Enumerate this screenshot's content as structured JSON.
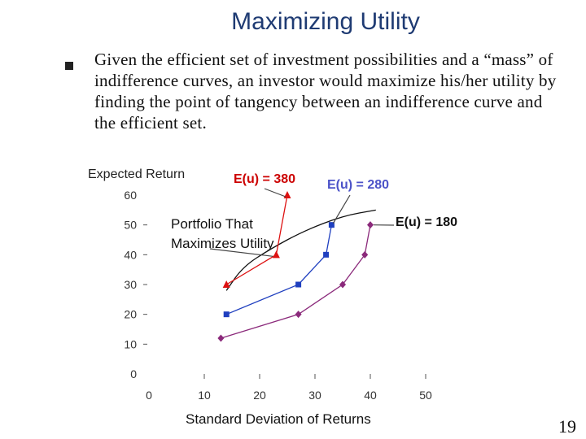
{
  "slide": {
    "title": "Maximizing Utility",
    "body": "Given the efficient set of investment possibilities and a “mass” of indifference curves, an investor would maximize his/her utility by finding the point of tangency between an indifference curve and the efficient set.",
    "page_number": "19"
  },
  "chart_data": {
    "type": "line",
    "xlabel": "Standard Deviation of Returns",
    "ylabel": "Expected Return",
    "xlim": [
      0,
      50
    ],
    "ylim": [
      0,
      60
    ],
    "x_ticks": [
      "0",
      "10",
      "20",
      "30",
      "40",
      "50"
    ],
    "y_ticks": [
      "0",
      "10",
      "20",
      "30",
      "40",
      "50",
      "60"
    ],
    "grid": false,
    "colors": {
      "red": "#dd1111",
      "blue": "#1f3fbf",
      "purple": "#8b2a7b",
      "efficient_set": "#111111",
      "label_blue": "#4b52c8"
    },
    "series": [
      {
        "name": "E(u) = 380",
        "label_color": "#cc0000",
        "marker": "triangle",
        "points": [
          [
            14,
            30
          ],
          [
            23,
            40
          ],
          [
            25,
            60
          ]
        ]
      },
      {
        "name": "E(u) = 280",
        "label_color": "#4b52c8",
        "marker": "square",
        "points": [
          [
            14,
            20
          ],
          [
            27,
            30
          ],
          [
            32,
            40
          ],
          [
            33,
            50
          ]
        ]
      },
      {
        "name": "E(u) = 180",
        "label_color": "#111111",
        "marker": "diamond",
        "points": [
          [
            13,
            12
          ],
          [
            27,
            20
          ],
          [
            35,
            30
          ],
          [
            39,
            40
          ],
          [
            40,
            50
          ]
        ]
      }
    ],
    "efficient_set": [
      [
        14,
        28
      ],
      [
        17,
        36
      ],
      [
        22,
        42
      ],
      [
        28,
        48
      ],
      [
        35,
        53
      ],
      [
        41,
        55
      ]
    ],
    "annotations": [
      {
        "text": "Portfolio That Maximizes Utility",
        "target": [
          23,
          40
        ]
      }
    ]
  }
}
